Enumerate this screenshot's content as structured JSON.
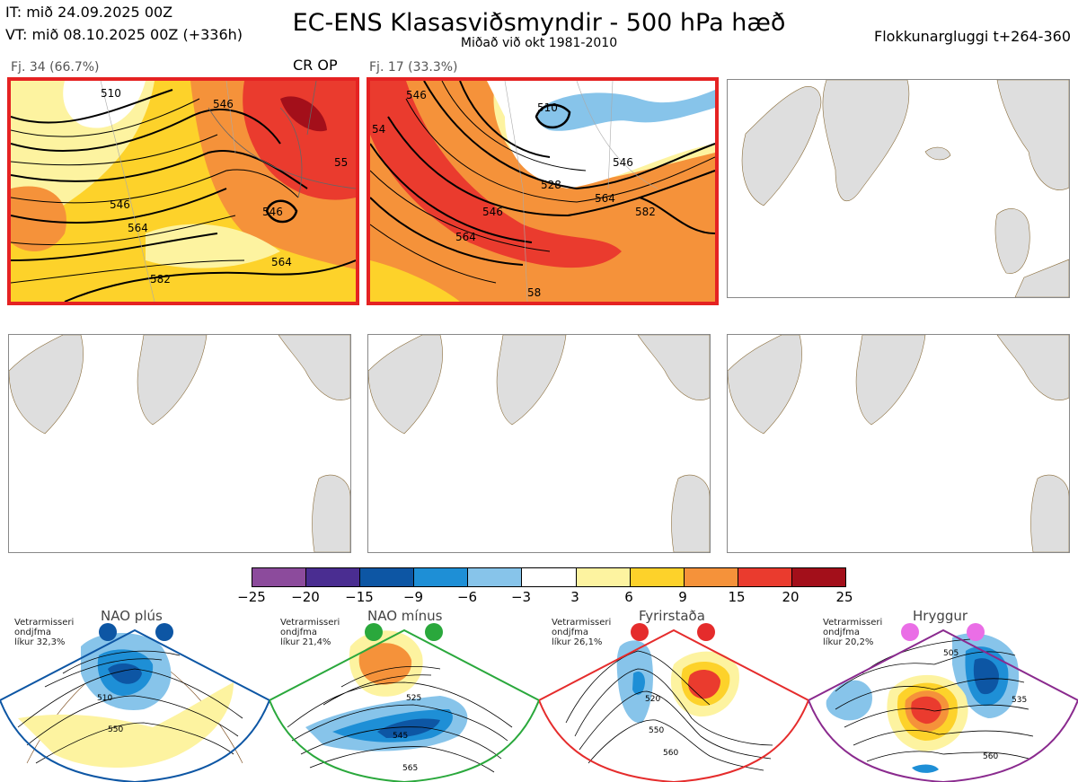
{
  "header": {
    "it_line": "IT: mið 24.09.2025 00Z",
    "vt_line": "VT: mið 08.10.2025 00Z  (+336h)",
    "title": "EC-ENS Klasasviðsmyndir - 500 hPa hæð",
    "subtitle": "Miðað við okt 1981-2010",
    "window": "Flokkunargluggi t+264-360"
  },
  "panels": [
    {
      "label": "Fj. 34 (66.7%)",
      "tag": "CR OP",
      "contours": [
        "546",
        "546",
        "546",
        "564",
        "564",
        "582",
        "55",
        "510"
      ]
    },
    {
      "label": "Fj. 17 (33.3%)",
      "contours": [
        "546",
        "510",
        "528",
        "546",
        "564",
        "582",
        "546",
        "564",
        "58",
        "54"
      ]
    }
  ],
  "colorbar": {
    "ticks": [
      "−25",
      "−20",
      "−15",
      "−9",
      "−6",
      "−3",
      "3",
      "6",
      "9",
      "15",
      "20",
      "25"
    ],
    "colors": [
      "#8c4b9c",
      "#4a2d91",
      "#0d56a4",
      "#1e8fd6",
      "#87c4ea",
      "#ffffff",
      "#fdf3a0",
      "#fdd22a",
      "#f5923a",
      "#ea3b2e",
      "#a30f1a"
    ]
  },
  "regimes": [
    {
      "title": "NAO plús",
      "note": [
        "Vetrarmisseri",
        "ondjfma",
        "líkur 32,3%"
      ],
      "color": "#0d56a4",
      "contours": [
        "510",
        "550"
      ]
    },
    {
      "title": "NAO mínus",
      "note": [
        "Vetrarmisseri",
        "ondjfma",
        "líkur 21,4%"
      ],
      "color": "#2aa83c",
      "contours": [
        "525",
        "545",
        "565"
      ]
    },
    {
      "title": "Fyrirstaða",
      "note": [
        "Vetrarmisseri",
        "ondjfma",
        "líkur 26,1%"
      ],
      "color": "#e52c2c",
      "contours": [
        "520",
        "550",
        "560"
      ]
    },
    {
      "title": "Hryggur",
      "note": [
        "Vetrarmisseri",
        "ondjfma",
        "líkur 20,2%"
      ],
      "color": "#ea6ee6",
      "contours": [
        "505",
        "535",
        "560"
      ]
    }
  ]
}
